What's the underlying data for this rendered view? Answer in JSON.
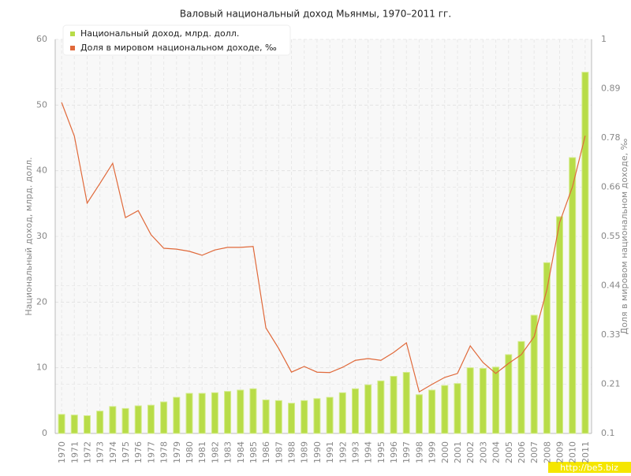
{
  "chart_data": {
    "type": "bar-line",
    "title": "Валовый национальный доход Мьянмы, 1970–2011 гг.",
    "y_label": "Национальный доход, млрд. долл.",
    "y2_label": "Доля в мировом национальном доходе, ‰",
    "watermark": "http://be5.biz",
    "categories": [
      "1970",
      "1971",
      "1972",
      "1973",
      "1974",
      "1975",
      "1976",
      "1977",
      "1978",
      "1979",
      "1980",
      "1981",
      "1982",
      "1983",
      "1984",
      "1985",
      "1986",
      "1987",
      "1988",
      "1989",
      "1990",
      "1991",
      "1992",
      "1993",
      "1994",
      "1995",
      "1996",
      "1997",
      "1998",
      "1999",
      "2000",
      "2001",
      "2002",
      "2003",
      "2004",
      "2005",
      "2006",
      "2007",
      "2008",
      "2009",
      "2010",
      "2011"
    ],
    "series": [
      {
        "name": "Национальный доход, млрд. долл.",
        "type": "bar",
        "color": "#b8dc48",
        "values": [
          2.9,
          2.8,
          2.7,
          3.4,
          4.1,
          3.8,
          4.2,
          4.3,
          4.8,
          5.5,
          6.1,
          6.1,
          6.2,
          6.4,
          6.6,
          6.8,
          5.1,
          5.0,
          4.6,
          5.0,
          5.3,
          5.5,
          6.2,
          6.8,
          7.4,
          8.0,
          8.7,
          9.3,
          5.9,
          6.6,
          7.3,
          7.6,
          10.0,
          9.9,
          10.1,
          12.0,
          14.0,
          18.0,
          26.0,
          33.0,
          42.0,
          55.0
        ]
      },
      {
        "name": "Доля в мировом национальном доходе, ‰",
        "type": "line",
        "axis": "y2",
        "color": "#e0693a",
        "values": [
          0.856,
          0.779,
          0.626,
          0.671,
          0.717,
          0.593,
          0.609,
          0.554,
          0.523,
          0.521,
          0.516,
          0.507,
          0.519,
          0.525,
          0.525,
          0.527,
          0.341,
          0.294,
          0.24,
          0.253,
          0.24,
          0.239,
          0.251,
          0.267,
          0.271,
          0.267,
          0.285,
          0.307,
          0.195,
          0.212,
          0.228,
          0.237,
          0.3,
          0.262,
          0.237,
          0.26,
          0.28,
          0.321,
          0.428,
          0.582,
          0.663,
          0.78
        ]
      }
    ],
    "ylim": [
      0,
      60
    ],
    "yticks": [
      0,
      10,
      20,
      30,
      40,
      50,
      60
    ],
    "y2lim": [
      0.1,
      1
    ],
    "y2ticks": [
      0.1,
      {
        "value": 0.2125,
        "label": "0.21"
      },
      {
        "value": 0.325,
        "label": "0.33"
      },
      {
        "value": 0.4375,
        "label": "0.44"
      },
      0.55,
      {
        "value": 0.6625,
        "label": "0.66"
      },
      {
        "value": 0.775,
        "label": "0.78"
      },
      {
        "value": 0.8875,
        "label": "0.89"
      },
      1
    ],
    "grid": true,
    "legend": "top-left"
  }
}
